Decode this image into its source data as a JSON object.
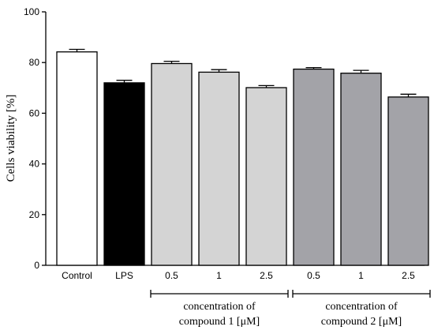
{
  "chart_data": {
    "type": "bar",
    "title": "",
    "xlabel": "",
    "ylabel": "Cells viability [%]",
    "ylim": [
      0,
      100
    ],
    "yticks": [
      0,
      20,
      40,
      60,
      80,
      100
    ],
    "grid": false,
    "legend": "none",
    "categories": [
      "Control",
      "LPS",
      "0.5",
      "1",
      "2.5",
      "0.5",
      "1",
      "2.5"
    ],
    "values": [
      84.2,
      72.0,
      79.6,
      76.2,
      70.1,
      77.4,
      75.8,
      66.4
    ],
    "errors": [
      1.0,
      1.0,
      0.9,
      1.0,
      0.8,
      0.6,
      1.1,
      1.1
    ],
    "colors": [
      "#ffffff",
      "#000000",
      "#d4d4d4",
      "#d4d4d4",
      "#d4d4d4",
      "#a3a3a8",
      "#a3a3a8",
      "#a3a3a8"
    ],
    "groups": [
      {
        "line1": "concentration of",
        "line2": "compound 1 [μM]",
        "members": [
          2,
          3,
          4
        ]
      },
      {
        "line1": "concentration of",
        "line2": "compound 2 [μM]",
        "members": [
          5,
          6,
          7
        ]
      }
    ]
  }
}
